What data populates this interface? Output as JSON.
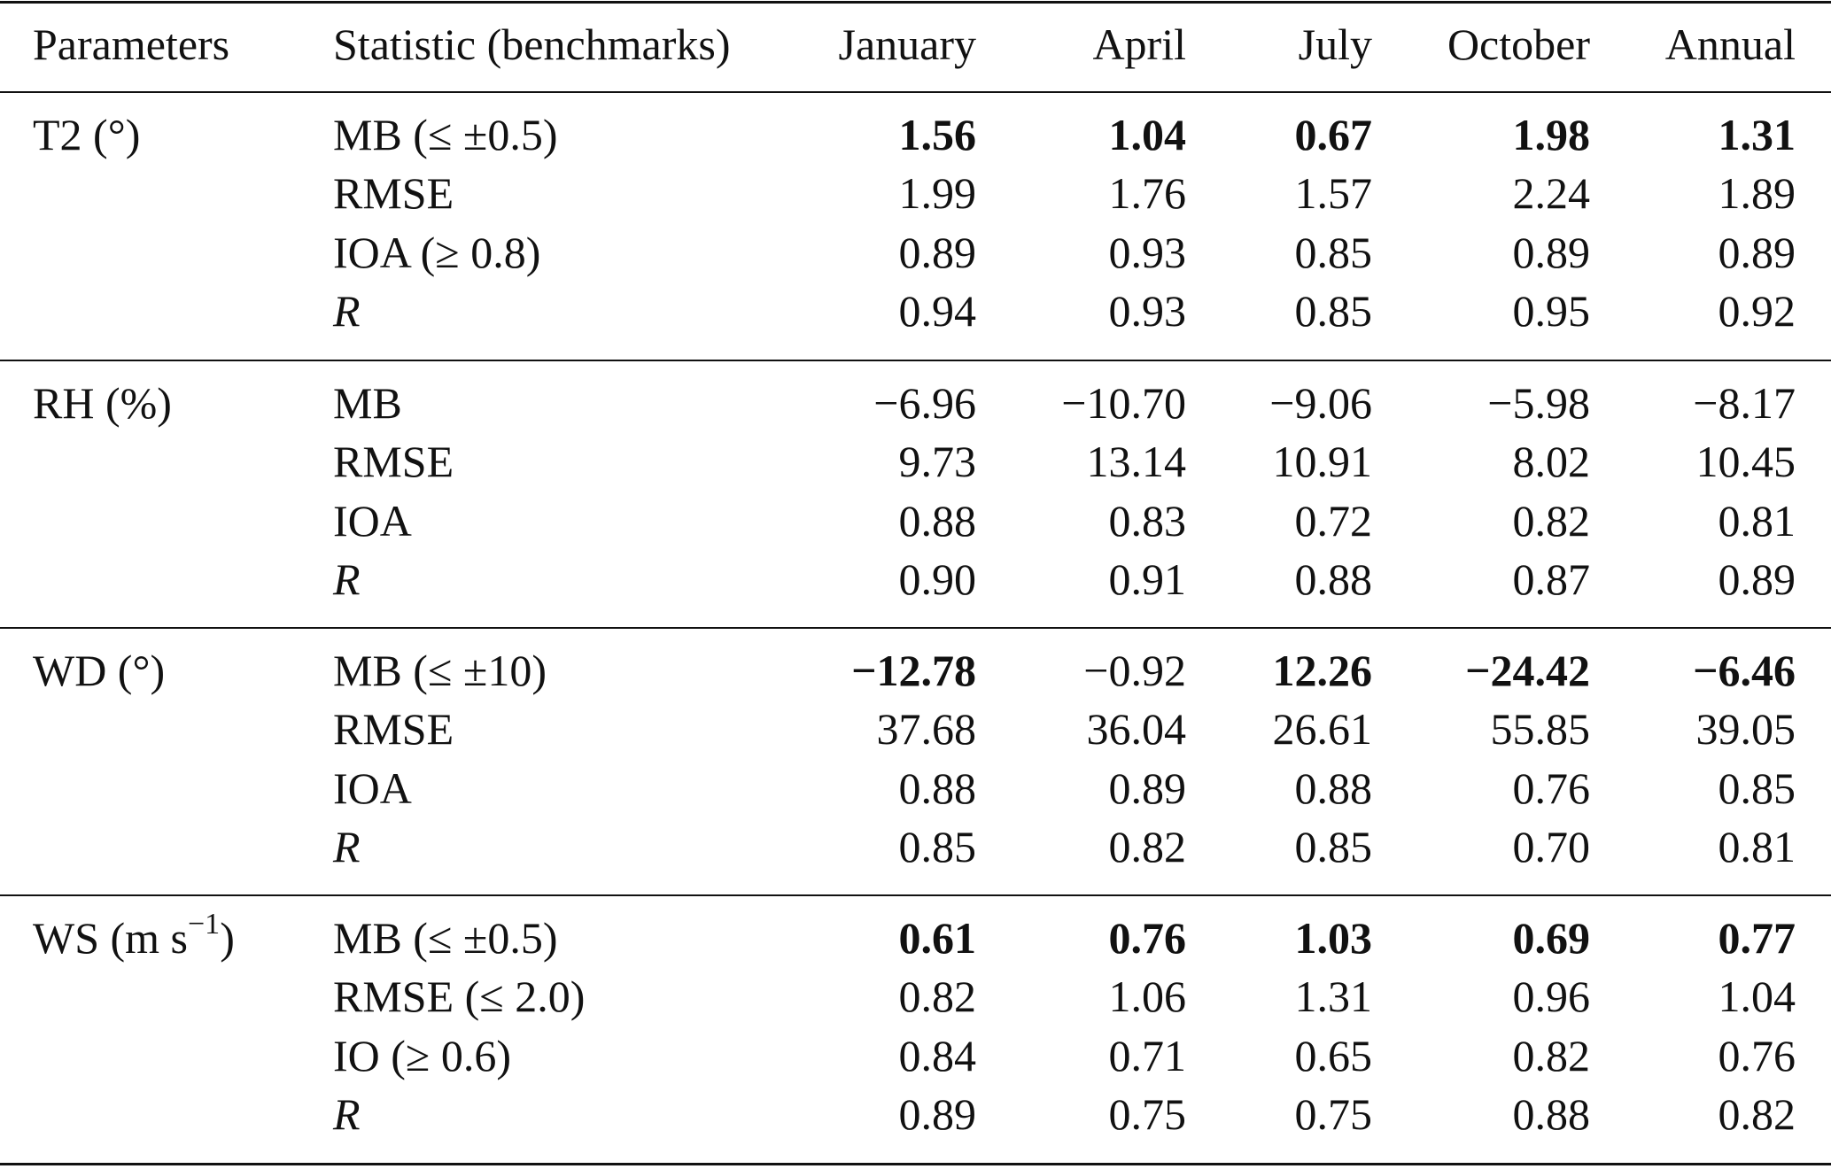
{
  "table": {
    "columns": [
      "Parameters",
      "Statistic (benchmarks)",
      "January",
      "April",
      "July",
      "October",
      "Annual"
    ],
    "groups": [
      {
        "parameter": [
          {
            "text": "T2 (°)"
          }
        ],
        "rows": [
          {
            "statistic": "MB (≤ ±0.5)",
            "values": [
              "1.56",
              "1.04",
              "0.67",
              "1.98",
              "1.31"
            ],
            "bold": [
              true,
              true,
              true,
              true,
              true
            ]
          },
          {
            "statistic": "RMSE",
            "values": [
              "1.99",
              "1.76",
              "1.57",
              "2.24",
              "1.89"
            ]
          },
          {
            "statistic": "IOA (≥ 0.8)",
            "values": [
              "0.89",
              "0.93",
              "0.85",
              "0.89",
              "0.89"
            ]
          },
          {
            "statistic": "R",
            "italic": true,
            "values": [
              "0.94",
              "0.93",
              "0.85",
              "0.95",
              "0.92"
            ]
          }
        ]
      },
      {
        "parameter": [
          {
            "text": "RH (%)"
          }
        ],
        "rows": [
          {
            "statistic": "MB",
            "values": [
              "−6.96",
              "−10.70",
              "−9.06",
              "−5.98",
              "−8.17"
            ]
          },
          {
            "statistic": "RMSE",
            "values": [
              "9.73",
              "13.14",
              "10.91",
              "8.02",
              "10.45"
            ]
          },
          {
            "statistic": "IOA",
            "values": [
              "0.88",
              "0.83",
              "0.72",
              "0.82",
              "0.81"
            ]
          },
          {
            "statistic": "R",
            "italic": true,
            "values": [
              "0.90",
              "0.91",
              "0.88",
              "0.87",
              "0.89"
            ]
          }
        ]
      },
      {
        "parameter": [
          {
            "text": "WD (°)"
          }
        ],
        "rows": [
          {
            "statistic": "MB (≤ ±10)",
            "values": [
              "−12.78",
              "−0.92",
              "12.26",
              "−24.42",
              "−6.46"
            ],
            "bold": [
              true,
              false,
              true,
              true,
              true
            ]
          },
          {
            "statistic": "RMSE",
            "values": [
              "37.68",
              "36.04",
              "26.61",
              "55.85",
              "39.05"
            ]
          },
          {
            "statistic": "IOA",
            "values": [
              "0.88",
              "0.89",
              "0.88",
              "0.76",
              "0.85"
            ]
          },
          {
            "statistic": "R",
            "italic": true,
            "values": [
              "0.85",
              "0.82",
              "0.85",
              "0.70",
              "0.81"
            ]
          }
        ]
      },
      {
        "parameter": [
          {
            "text": "WS (m s"
          },
          {
            "text": "−1",
            "sup": true
          },
          {
            "text": ")"
          }
        ],
        "rows": [
          {
            "statistic": "MB (≤ ±0.5)",
            "values": [
              "0.61",
              "0.76",
              "1.03",
              "0.69",
              "0.77"
            ],
            "bold": [
              true,
              true,
              true,
              true,
              true
            ]
          },
          {
            "statistic": "RMSE (≤ 2.0)",
            "values": [
              "0.82",
              "1.06",
              "1.31",
              "0.96",
              "1.04"
            ]
          },
          {
            "statistic": "IO (≥ 0.6)",
            "values": [
              "0.84",
              "0.71",
              "0.65",
              "0.82",
              "0.76"
            ]
          },
          {
            "statistic": "R",
            "italic": true,
            "values": [
              "0.89",
              "0.75",
              "0.75",
              "0.88",
              "0.82"
            ]
          }
        ]
      }
    ]
  }
}
